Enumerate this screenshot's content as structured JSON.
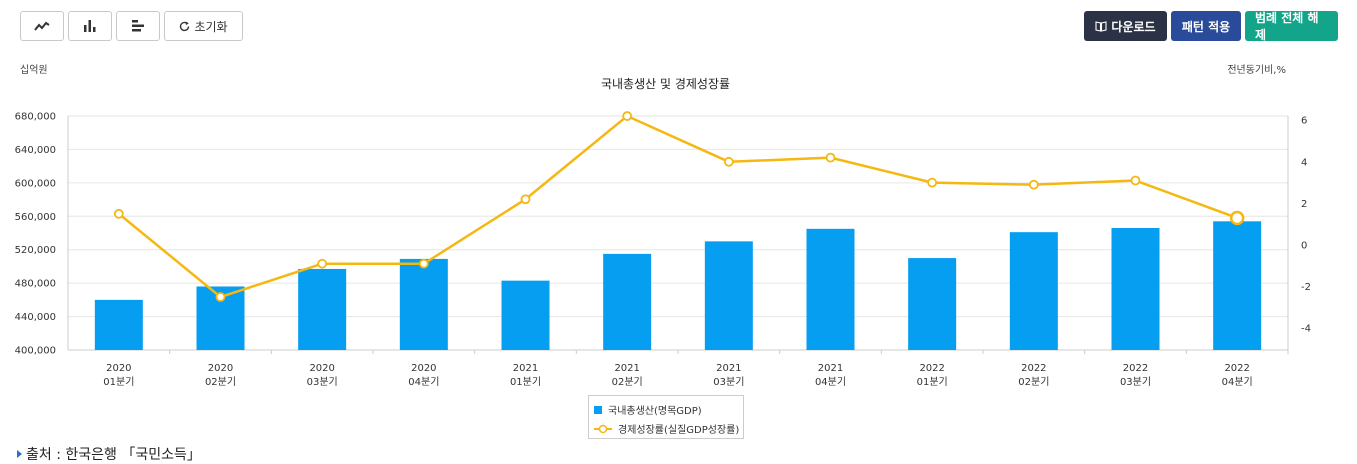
{
  "toolbar": {
    "line_icon": "line-chart-icon",
    "bar_icon": "bar-chart-icon",
    "hbar_icon": "horizontal-bar-chart-icon",
    "reset_label": "초기화",
    "download_label": "다운로드",
    "apply_pattern_label": "패턴 적용",
    "release_legend_label": "범례 전체 해제"
  },
  "colors": {
    "bar": "#069ef1",
    "line": "#f5b711",
    "download_btn": "#2b3245",
    "apply_btn": "#2a4b9a",
    "release_btn": "#12a58a"
  },
  "source_text": "출처 : 한국은행 「국민소득」",
  "chart_data": {
    "type": "bar",
    "title": "국내총생산 및 경제성장률",
    "ylabel_left": "십억원",
    "ylabel_right": "전년동기비,%",
    "categories": [
      [
        "2020",
        "01분기"
      ],
      [
        "2020",
        "02분기"
      ],
      [
        "2020",
        "03분기"
      ],
      [
        "2020",
        "04분기"
      ],
      [
        "2021",
        "01분기"
      ],
      [
        "2021",
        "02분기"
      ],
      [
        "2021",
        "03분기"
      ],
      [
        "2021",
        "04분기"
      ],
      [
        "2022",
        "01분기"
      ],
      [
        "2022",
        "02분기"
      ],
      [
        "2022",
        "03분기"
      ],
      [
        "2022",
        "04분기"
      ]
    ],
    "series": [
      {
        "name": "국내총생산(명목GDP)",
        "type": "bar",
        "axis": "left",
        "values": [
          460000,
          476000,
          497000,
          509000,
          483000,
          515000,
          530000,
          545000,
          510000,
          541000,
          546000,
          554000
        ]
      },
      {
        "name": "경제성장률(실질GDP성장률)",
        "type": "line",
        "axis": "right",
        "values": [
          1.5,
          -2.5,
          -0.9,
          -0.9,
          2.2,
          6.2,
          4.0,
          4.2,
          3.0,
          2.9,
          3.1,
          1.3
        ]
      }
    ],
    "ylim_left": [
      400000,
      680000
    ],
    "yticks_left": [
      "680,000",
      "640,000",
      "600,000",
      "560,000",
      "520,000",
      "480,000",
      "440,000",
      "400,000"
    ],
    "ylim_right": [
      -5,
      6
    ],
    "yticks_right": [
      "6",
      "4",
      "2",
      "0",
      "-2",
      "-4"
    ],
    "grid": true,
    "legend_position": "bottom-center"
  }
}
